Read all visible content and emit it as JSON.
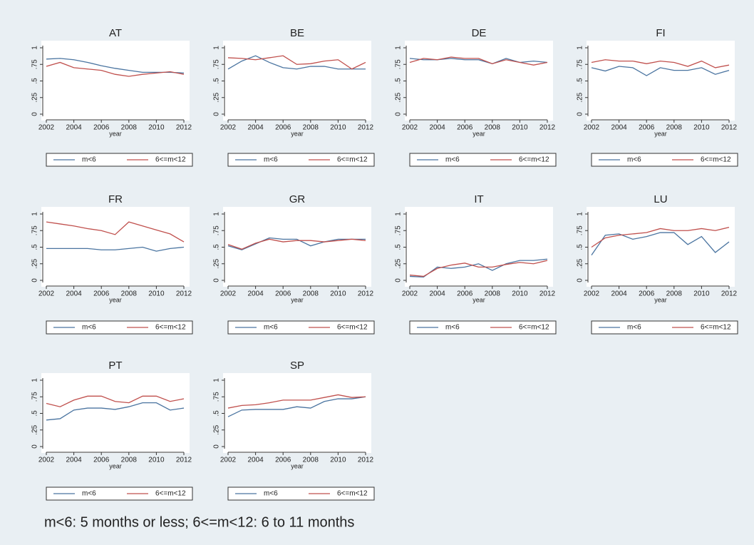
{
  "chart_data": [
    {
      "type": "line",
      "title": "AT",
      "xlabel": "year",
      "x": [
        2002,
        2003,
        2004,
        2005,
        2006,
        2007,
        2008,
        2009,
        2010,
        2011,
        2012
      ],
      "xlim": [
        2002,
        2012
      ],
      "xticks": [
        2002,
        2004,
        2006,
        2008,
        2010,
        2012
      ],
      "ylim": [
        0,
        1
      ],
      "yticks": [
        0,
        {
          "value": 0.25,
          "label": ".25"
        },
        {
          "value": 0.5,
          "label": ".5"
        },
        {
          "value": 0.75,
          "label": ".75"
        },
        1
      ],
      "series": [
        {
          "name": "m<6",
          "color": "#4a74a0",
          "values": [
            0.83,
            0.84,
            0.82,
            0.78,
            0.73,
            0.69,
            0.66,
            0.63,
            0.63,
            0.63,
            0.62
          ]
        },
        {
          "name": "6<=m<12",
          "color": "#c0504d",
          "values": [
            0.72,
            0.78,
            0.7,
            0.68,
            0.66,
            0.6,
            0.57,
            0.6,
            0.62,
            0.64,
            0.6
          ]
        }
      ]
    },
    {
      "type": "line",
      "title": "BE",
      "xlabel": "year",
      "x": [
        2002,
        2003,
        2004,
        2005,
        2006,
        2007,
        2008,
        2009,
        2010,
        2011,
        2012
      ],
      "xlim": [
        2002,
        2012
      ],
      "xticks": [
        2002,
        2004,
        2006,
        2008,
        2010,
        2012
      ],
      "ylim": [
        0,
        1
      ],
      "yticks": [
        0,
        {
          "value": 0.25,
          "label": ".25"
        },
        {
          "value": 0.5,
          "label": ".5"
        },
        {
          "value": 0.75,
          "label": ".75"
        },
        1
      ],
      "series": [
        {
          "name": "m<6",
          "color": "#4a74a0",
          "values": [
            0.68,
            0.8,
            0.88,
            0.78,
            0.7,
            0.68,
            0.72,
            0.72,
            0.68,
            0.68,
            0.68
          ]
        },
        {
          "name": "6<=m<12",
          "color": "#c0504d",
          "values": [
            0.85,
            0.84,
            0.82,
            0.85,
            0.88,
            0.75,
            0.76,
            0.8,
            0.82,
            0.68,
            0.78
          ]
        }
      ]
    },
    {
      "type": "line",
      "title": "DE",
      "xlabel": "year",
      "x": [
        2002,
        2003,
        2004,
        2005,
        2006,
        2007,
        2008,
        2009,
        2010,
        2011,
        2012
      ],
      "xlim": [
        2002,
        2012
      ],
      "xticks": [
        2002,
        2004,
        2006,
        2008,
        2010,
        2012
      ],
      "ylim": [
        0,
        1
      ],
      "yticks": [
        0,
        {
          "value": 0.25,
          "label": ".25"
        },
        {
          "value": 0.5,
          "label": ".5"
        },
        {
          "value": 0.75,
          "label": ".75"
        },
        1
      ],
      "series": [
        {
          "name": "m<6",
          "color": "#4a74a0",
          "values": [
            0.84,
            0.82,
            0.82,
            0.84,
            0.82,
            0.82,
            0.76,
            0.84,
            0.78,
            0.8,
            0.78
          ]
        },
        {
          "name": "6<=m<12",
          "color": "#c0504d",
          "values": [
            0.78,
            0.84,
            0.82,
            0.86,
            0.84,
            0.84,
            0.76,
            0.82,
            0.78,
            0.74,
            0.78
          ]
        }
      ]
    },
    {
      "type": "line",
      "title": "FI",
      "xlabel": "year",
      "x": [
        2002,
        2003,
        2004,
        2005,
        2006,
        2007,
        2008,
        2009,
        2010,
        2011,
        2012
      ],
      "xlim": [
        2002,
        2012
      ],
      "xticks": [
        2002,
        2004,
        2006,
        2008,
        2010,
        2012
      ],
      "ylim": [
        0,
        1
      ],
      "yticks": [
        0,
        {
          "value": 0.25,
          "label": ".25"
        },
        {
          "value": 0.5,
          "label": ".5"
        },
        {
          "value": 0.75,
          "label": ".75"
        },
        1
      ],
      "series": [
        {
          "name": "m<6",
          "color": "#4a74a0",
          "values": [
            0.7,
            0.65,
            0.72,
            0.7,
            0.58,
            0.7,
            0.66,
            0.66,
            0.7,
            0.6,
            0.66
          ]
        },
        {
          "name": "6<=m<12",
          "color": "#c0504d",
          "values": [
            0.78,
            0.82,
            0.8,
            0.8,
            0.76,
            0.8,
            0.78,
            0.72,
            0.8,
            0.7,
            0.74
          ]
        }
      ]
    },
    {
      "type": "line",
      "title": "FR",
      "xlabel": "year",
      "x": [
        2002,
        2003,
        2004,
        2005,
        2006,
        2007,
        2008,
        2009,
        2010,
        2011,
        2012
      ],
      "xlim": [
        2002,
        2012
      ],
      "xticks": [
        2002,
        2004,
        2006,
        2008,
        2010,
        2012
      ],
      "ylim": [
        0,
        1
      ],
      "yticks": [
        0,
        {
          "value": 0.25,
          "label": ".25"
        },
        {
          "value": 0.5,
          "label": ".5"
        },
        {
          "value": 0.75,
          "label": ".75"
        },
        1
      ],
      "series": [
        {
          "name": "m<6",
          "color": "#4a74a0",
          "values": [
            0.48,
            0.48,
            0.48,
            0.48,
            0.46,
            0.46,
            0.48,
            0.5,
            0.44,
            0.48,
            0.5
          ]
        },
        {
          "name": "6<=m<12",
          "color": "#c0504d",
          "values": [
            0.88,
            0.85,
            0.82,
            0.78,
            0.75,
            0.69,
            0.88,
            0.82,
            0.76,
            0.7,
            0.58
          ]
        }
      ]
    },
    {
      "type": "line",
      "title": "GR",
      "xlabel": "year",
      "x": [
        2002,
        2003,
        2004,
        2005,
        2006,
        2007,
        2008,
        2009,
        2010,
        2011,
        2012
      ],
      "xlim": [
        2002,
        2012
      ],
      "xticks": [
        2002,
        2004,
        2006,
        2008,
        2010,
        2012
      ],
      "ylim": [
        0,
        1
      ],
      "yticks": [
        0,
        {
          "value": 0.25,
          "label": ".25"
        },
        {
          "value": 0.5,
          "label": ".5"
        },
        {
          "value": 0.75,
          "label": ".75"
        },
        1
      ],
      "series": [
        {
          "name": "m<6",
          "color": "#4a74a0",
          "values": [
            0.52,
            0.46,
            0.55,
            0.64,
            0.62,
            0.62,
            0.52,
            0.58,
            0.62,
            0.62,
            0.62
          ]
        },
        {
          "name": "6<=m<12",
          "color": "#c0504d",
          "values": [
            0.54,
            0.47,
            0.56,
            0.62,
            0.58,
            0.6,
            0.6,
            0.58,
            0.6,
            0.62,
            0.6
          ]
        }
      ]
    },
    {
      "type": "line",
      "title": "IT",
      "xlabel": "year",
      "x": [
        2002,
        2003,
        2004,
        2005,
        2006,
        2007,
        2008,
        2009,
        2010,
        2011,
        2012
      ],
      "xlim": [
        2002,
        2012
      ],
      "xticks": [
        2002,
        2004,
        2006,
        2008,
        2010,
        2012
      ],
      "ylim": [
        0,
        1
      ],
      "yticks": [
        0,
        {
          "value": 0.25,
          "label": ".25"
        },
        {
          "value": 0.5,
          "label": ".5"
        },
        {
          "value": 0.75,
          "label": ".75"
        },
        1
      ],
      "series": [
        {
          "name": "m<6",
          "color": "#4a74a0",
          "values": [
            0.06,
            0.05,
            0.2,
            0.18,
            0.2,
            0.25,
            0.15,
            0.25,
            0.3,
            0.3,
            0.32
          ]
        },
        {
          "name": "6<=m<12",
          "color": "#c0504d",
          "values": [
            0.08,
            0.06,
            0.18,
            0.23,
            0.26,
            0.2,
            0.2,
            0.24,
            0.27,
            0.25,
            0.3
          ]
        }
      ]
    },
    {
      "type": "line",
      "title": "LU",
      "xlabel": "year",
      "x": [
        2002,
        2003,
        2004,
        2005,
        2006,
        2007,
        2008,
        2009,
        2010,
        2011,
        2012
      ],
      "xlim": [
        2002,
        2012
      ],
      "xticks": [
        2002,
        2004,
        2006,
        2008,
        2010,
        2012
      ],
      "ylim": [
        0,
        1
      ],
      "yticks": [
        0,
        {
          "value": 0.25,
          "label": ".25"
        },
        {
          "value": 0.5,
          "label": ".5"
        },
        {
          "value": 0.75,
          "label": ".75"
        },
        1
      ],
      "series": [
        {
          "name": "m<6",
          "color": "#4a74a0",
          "values": [
            0.38,
            0.68,
            0.7,
            0.62,
            0.66,
            0.72,
            0.72,
            0.54,
            0.66,
            0.42,
            0.58
          ]
        },
        {
          "name": "6<=m<12",
          "color": "#c0504d",
          "values": [
            0.5,
            0.64,
            0.68,
            0.7,
            0.72,
            0.78,
            0.75,
            0.75,
            0.78,
            0.75,
            0.8
          ]
        }
      ]
    },
    {
      "type": "line",
      "title": "PT",
      "xlabel": "year",
      "x": [
        2002,
        2003,
        2004,
        2005,
        2006,
        2007,
        2008,
        2009,
        2010,
        2011,
        2012
      ],
      "xlim": [
        2002,
        2012
      ],
      "xticks": [
        2002,
        2004,
        2006,
        2008,
        2010,
        2012
      ],
      "ylim": [
        0,
        1
      ],
      "yticks": [
        0,
        {
          "value": 0.25,
          "label": ".25"
        },
        {
          "value": 0.5,
          "label": ".5"
        },
        {
          "value": 0.75,
          "label": ".75"
        },
        1
      ],
      "series": [
        {
          "name": "m<6",
          "color": "#4a74a0",
          "values": [
            0.4,
            0.42,
            0.55,
            0.58,
            0.58,
            0.56,
            0.6,
            0.66,
            0.66,
            0.55,
            0.58
          ]
        },
        {
          "name": "6<=m<12",
          "color": "#c0504d",
          "values": [
            0.65,
            0.6,
            0.7,
            0.76,
            0.76,
            0.68,
            0.66,
            0.76,
            0.76,
            0.68,
            0.72
          ]
        }
      ]
    },
    {
      "type": "line",
      "title": "SP",
      "xlabel": "year",
      "x": [
        2002,
        2003,
        2004,
        2005,
        2006,
        2007,
        2008,
        2009,
        2010,
        2011,
        2012
      ],
      "xlim": [
        2002,
        2012
      ],
      "xticks": [
        2002,
        2004,
        2006,
        2008,
        2010,
        2012
      ],
      "ylim": [
        0,
        1
      ],
      "yticks": [
        0,
        {
          "value": 0.25,
          "label": ".25"
        },
        {
          "value": 0.5,
          "label": ".5"
        },
        {
          "value": 0.75,
          "label": ".75"
        },
        1
      ],
      "series": [
        {
          "name": "m<6",
          "color": "#4a74a0",
          "values": [
            0.45,
            0.55,
            0.56,
            0.56,
            0.56,
            0.6,
            0.58,
            0.68,
            0.72,
            0.72,
            0.75
          ]
        },
        {
          "name": "6<=m<12",
          "color": "#c0504d",
          "values": [
            0.58,
            0.62,
            0.63,
            0.66,
            0.7,
            0.7,
            0.7,
            0.74,
            0.78,
            0.74,
            0.75
          ]
        }
      ]
    }
  ],
  "footnote": "m<6: 5 months or less; 6<=m<12: 6 to 11 months"
}
